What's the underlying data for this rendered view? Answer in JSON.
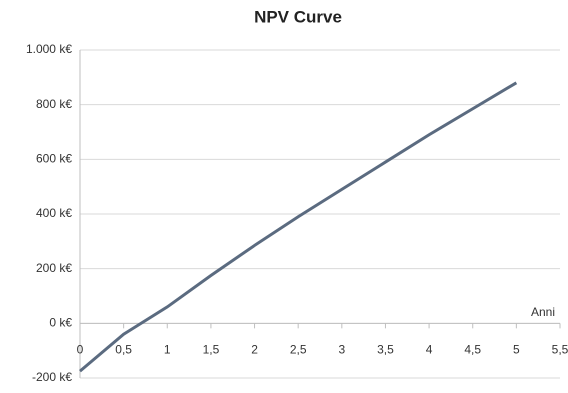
{
  "chart_data": {
    "type": "line",
    "title": "NPV Curve",
    "x_label": "Anni",
    "x": [
      0,
      0.5,
      1,
      1.5,
      2,
      2.5,
      3,
      3.5,
      4,
      4.5,
      5
    ],
    "series": [
      {
        "name": "NPV",
        "color": "#5b6b80",
        "values": [
          -175,
          -40,
          60,
          175,
          285,
          390,
          490,
          590,
          690,
          785,
          880
        ]
      }
    ],
    "xlim": [
      0,
      5.5
    ],
    "xticks": [
      0,
      {
        "value": 0.5,
        "label": "0,5"
      },
      1,
      {
        "value": 1.5,
        "label": "1,5"
      },
      2,
      {
        "value": 2.5,
        "label": "2,5"
      },
      3,
      {
        "value": 3.5,
        "label": "3,5"
      },
      4,
      {
        "value": 4.5,
        "label": "4,5"
      },
      5,
      {
        "value": 5.5,
        "label": "5,5"
      }
    ],
    "ylim": [
      -200,
      1000
    ],
    "yticks": [
      {
        "value": -200,
        "label": "-200 k€"
      },
      {
        "value": 0,
        "label": "0 k€"
      },
      {
        "value": 200,
        "label": "200 k€"
      },
      {
        "value": 400,
        "label": "400 k€"
      },
      {
        "value": 600,
        "label": "600 k€"
      },
      {
        "value": 800,
        "label": "800 k€"
      },
      {
        "value": 1000,
        "label": "1.000 k€"
      }
    ],
    "grid": true
  }
}
